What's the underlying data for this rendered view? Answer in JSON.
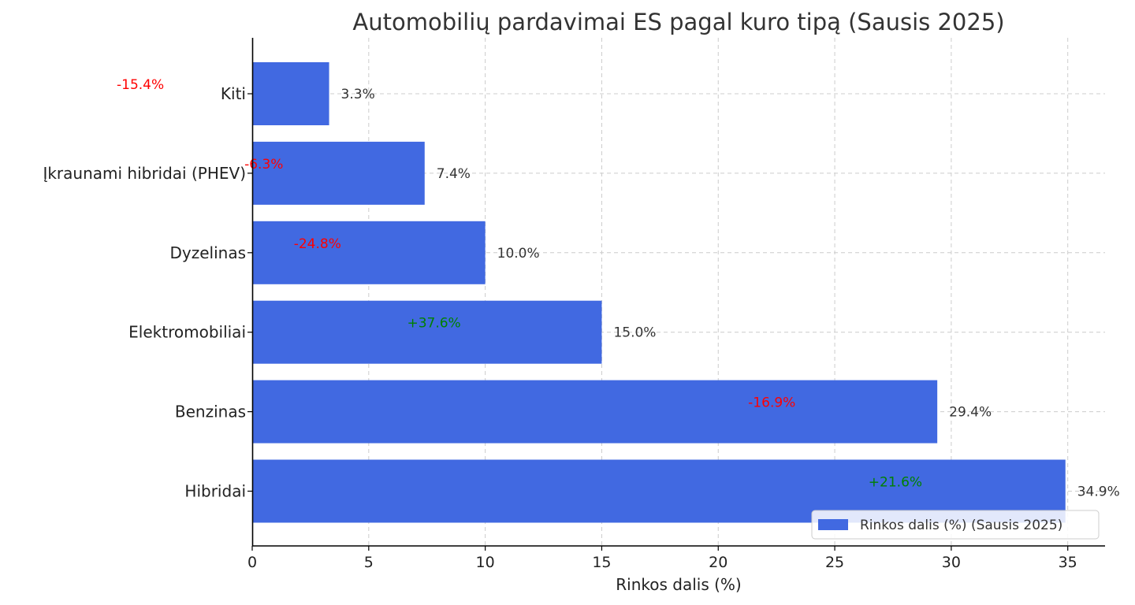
{
  "chart_data": {
    "type": "bar",
    "orientation": "horizontal",
    "title": "Automobilių pardavimai ES pagal kuro tipą (Sausis 2025)",
    "xlabel": "Rinkos dalis (%)",
    "ylabel": "",
    "xlim": [
      0,
      36.6
    ],
    "xticks": [
      0,
      5,
      10,
      15,
      20,
      25,
      30,
      35
    ],
    "grid": true,
    "legend_position": "bottom-right",
    "categories": [
      "Hibridai",
      "Benzinas",
      "Elektromobiliai",
      "Dyzelinas",
      "Įkraunami hibridai (PHEV)",
      "Kiti"
    ],
    "series": [
      {
        "name": "Rinkos dalis (%) (Sausis 2025)",
        "color": "#4169e1",
        "values": [
          34.9,
          29.4,
          15.0,
          10.0,
          7.4,
          3.3
        ],
        "data_labels": [
          "34.9%",
          "29.4%",
          "15.0%",
          "10.0%",
          "7.4%",
          "3.3%"
        ]
      }
    ],
    "annotations": [
      {
        "category": "Hibridai",
        "text": "+21.6%",
        "color": "#008000",
        "x": 27.6
      },
      {
        "category": "Benzinas",
        "text": "-16.9%",
        "color": "#ff0000",
        "x": 22.3
      },
      {
        "category": "Elektromobiliai",
        "text": "+37.6%",
        "color": "#008000",
        "x": 7.8
      },
      {
        "category": "Dyzelinas",
        "text": "-24.8%",
        "color": "#ff0000",
        "x": 2.8
      },
      {
        "category": "Įkraunami hibridai (PHEV)",
        "text": "-6.3%",
        "color": "#ff0000",
        "x": 0.5
      },
      {
        "category": "Kiti",
        "text": "-15.4%",
        "color": "#ff0000",
        "x": -4.8
      }
    ]
  }
}
